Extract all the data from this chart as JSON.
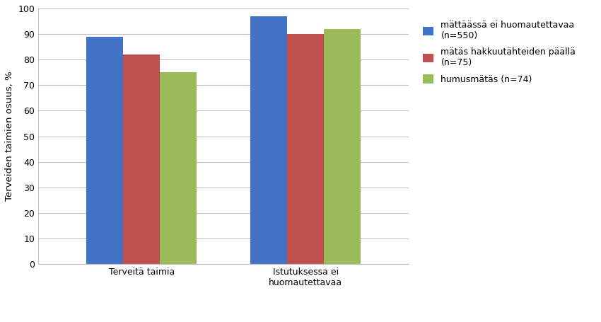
{
  "categories": [
    "Terveitä taimia",
    "Istutuksessa ei\nhuomautettavaa"
  ],
  "series": [
    {
      "label": "mättäässä ei huomautettavaa\n(n=550)",
      "values": [
        89,
        97
      ],
      "color": "#4472C4"
    },
    {
      "label": "mätäs hakkuutähteiden päällä\n(n=75)",
      "values": [
        82,
        90
      ],
      "color": "#C0504D"
    },
    {
      "label": "humusmätäs (n=74)",
      "values": [
        75,
        92
      ],
      "color": "#9BBB59"
    }
  ],
  "ylabel": "Terveiden taimien osuus, %",
  "ylim": [
    0,
    100
  ],
  "yticks": [
    0,
    10,
    20,
    30,
    40,
    50,
    60,
    70,
    80,
    90,
    100
  ],
  "bar_width": 0.27,
  "group_centers": [
    0.4,
    1.6
  ],
  "background_color": "#FFFFFF",
  "grid_color": "#BFBFBF",
  "legend_fontsize": 9,
  "axis_fontsize": 9.5,
  "tick_fontsize": 9
}
